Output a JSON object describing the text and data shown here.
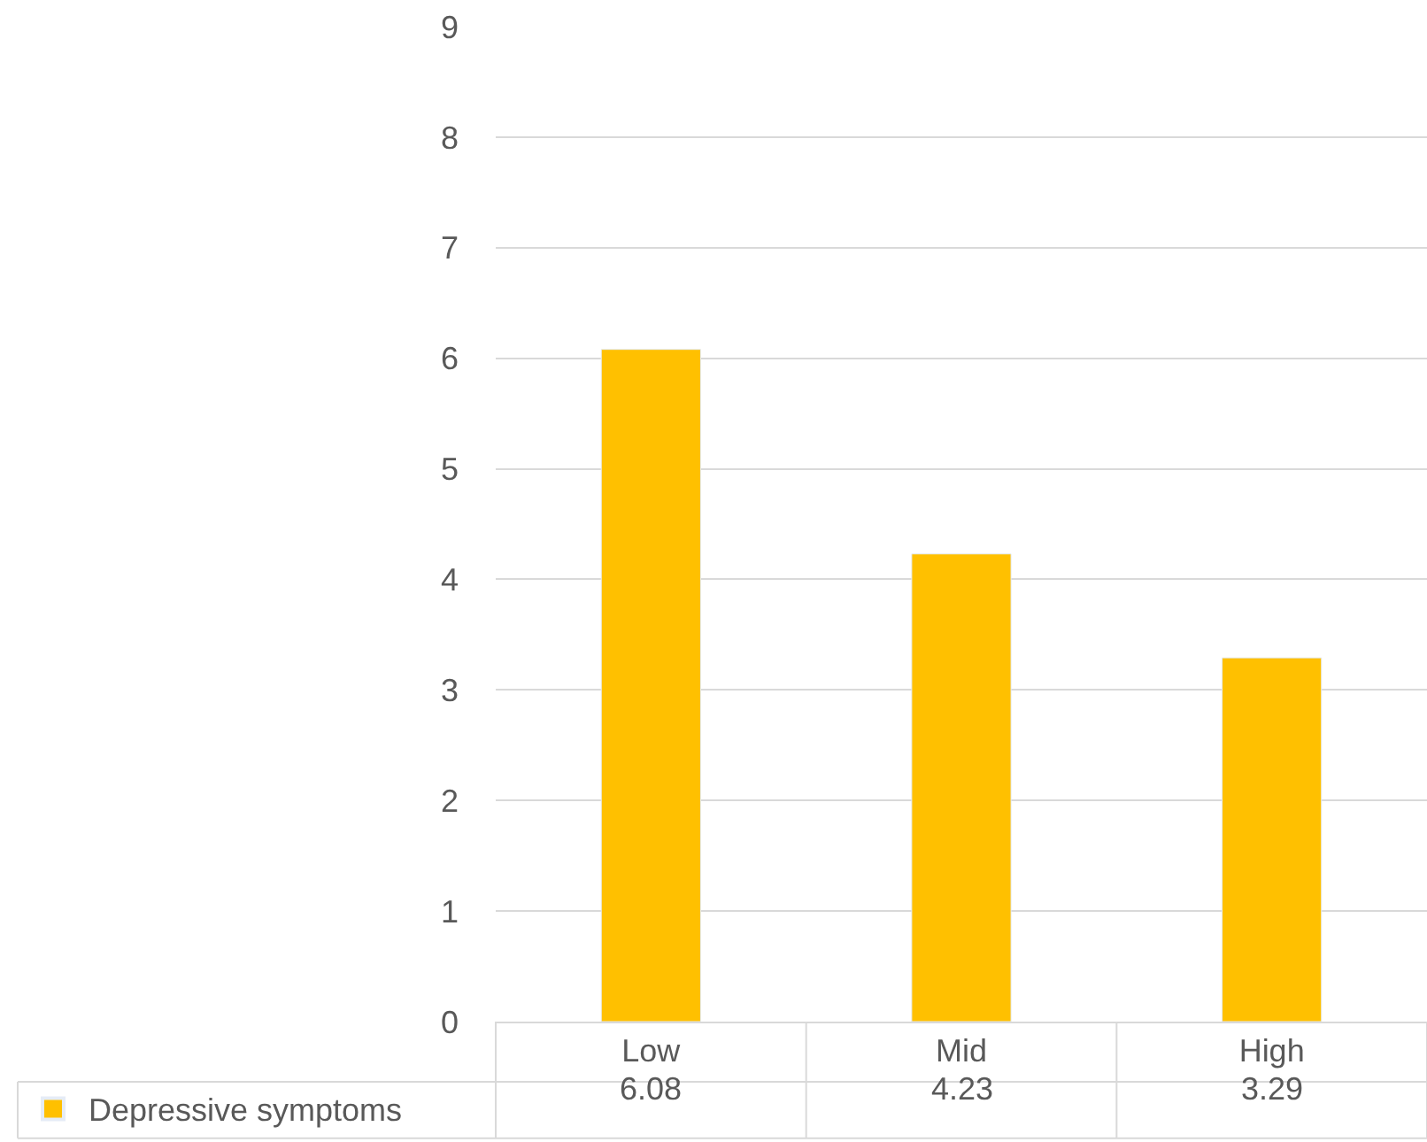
{
  "chart_data": {
    "type": "bar",
    "categories": [
      "Low",
      "Mid",
      "High"
    ],
    "series": [
      {
        "name": "Depressive symptoms",
        "color": "#ffc000",
        "values": [
          6.08,
          4.23,
          3.29
        ]
      }
    ],
    "ylim": [
      0,
      9
    ],
    "yticks": [
      0,
      1,
      2,
      3,
      4,
      5,
      6,
      7,
      8,
      9
    ],
    "grid": "y",
    "data_labels": true,
    "legend": "bottom left"
  }
}
